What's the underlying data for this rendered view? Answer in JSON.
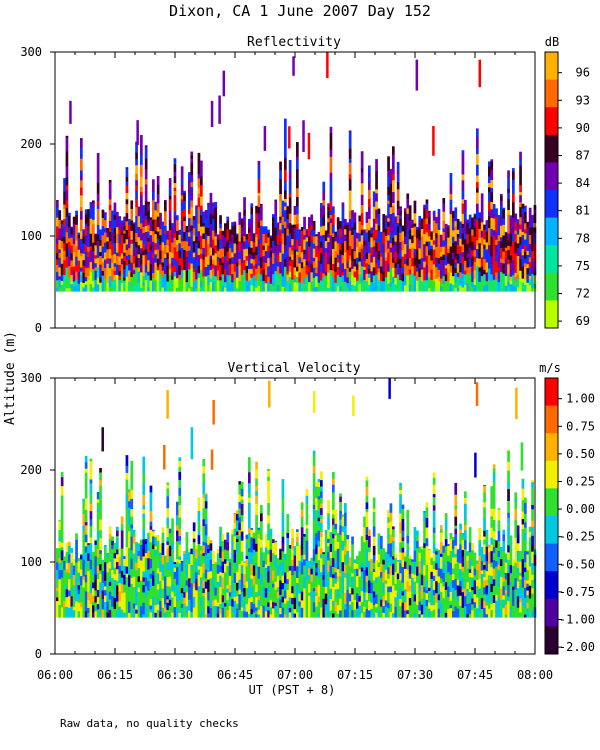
{
  "title": "Dixon, CA  1 June 2007  Day 152",
  "ylabel": "Altitude (m)",
  "xlabel": "UT  (PST + 8)",
  "footnote": "Raw data, no quality checks",
  "x_ticks": [
    "06:00",
    "06:15",
    "06:30",
    "06:45",
    "07:00",
    "07:15",
    "07:30",
    "07:45",
    "08:00"
  ],
  "chart_data": [
    {
      "type": "heatmap",
      "title": "Reflectivity",
      "units": "dB",
      "xlabel": "UT  (PST + 8)",
      "ylabel": "Altitude (m)",
      "xlim": [
        "06:00",
        "08:00"
      ],
      "ylim": [
        0,
        300
      ],
      "y_ticks": [
        0,
        100,
        200,
        300
      ],
      "colorbar": {
        "labels": [
          "96",
          "93",
          "90",
          "87",
          "84",
          "81",
          "78",
          "75",
          "72",
          "69"
        ],
        "colors": [
          "#ffb000",
          "#ff6a00",
          "#ff0000",
          "#3a0020",
          "#7000b0",
          "#1030ff",
          "#00b4ff",
          "#00e6a0",
          "#30e030",
          "#b8ff00"
        ]
      },
      "data_summary": {
        "main_layer_altitude_m": [
          40,
          140
        ],
        "cloud_tops_m": [
          140,
          230
        ],
        "sporadic_echoes_max_m": 300,
        "minimum_altitude_m": 40
      }
    },
    {
      "type": "heatmap",
      "title": "Vertical Velocity",
      "units": "m/s",
      "xlabel": "UT  (PST + 8)",
      "ylabel": "Altitude (m)",
      "xlim": [
        "06:00",
        "08:00"
      ],
      "ylim": [
        0,
        300
      ],
      "y_ticks": [
        0,
        100,
        200,
        300
      ],
      "colorbar": {
        "labels": [
          "1.00",
          "0.75",
          "0.50",
          "0.25",
          "0.00",
          "-0.25",
          "-0.50",
          "-0.75",
          "-1.00",
          "-2.00"
        ],
        "colors": [
          "#ff0000",
          "#ff6a00",
          "#ffb000",
          "#f0f000",
          "#30e030",
          "#00c8e0",
          "#1060ff",
          "#0000d0",
          "#5000a0",
          "#2a0030"
        ]
      },
      "data_summary": {
        "main_layer_altitude_m": [
          40,
          140
        ],
        "cloud_tops_m": [
          140,
          230
        ],
        "sporadic_echoes_max_m": 300,
        "minimum_altitude_m": 40
      }
    }
  ]
}
